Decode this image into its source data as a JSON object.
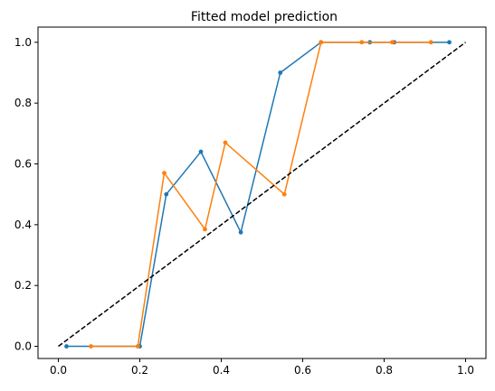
{
  "chart_data": {
    "type": "line",
    "title": "Fitted model prediction",
    "xlabel": "",
    "ylabel": "",
    "xlim": [
      -0.05,
      1.05
    ],
    "ylim": [
      -0.04,
      1.05
    ],
    "xticks": [
      "0.0",
      "0.2",
      "0.4",
      "0.6",
      "0.8",
      "1.0"
    ],
    "yticks": [
      "0.0",
      "0.2",
      "0.4",
      "0.6",
      "0.8",
      "1.0"
    ],
    "grid": false,
    "series": [
      {
        "color": "#1f77b4",
        "marker": "circle",
        "x": [
          0.02,
          0.2,
          0.265,
          0.35,
          0.448,
          0.545,
          0.645,
          0.765,
          0.825,
          0.96
        ],
        "y": [
          0.0,
          0.0,
          0.5,
          0.64,
          0.375,
          0.9,
          1.0,
          1.0,
          1.0,
          1.0
        ]
      },
      {
        "color": "#ff7f0e",
        "marker": "circle",
        "x": [
          0.08,
          0.195,
          0.26,
          0.36,
          0.41,
          0.555,
          0.645,
          0.745,
          0.82,
          0.915
        ],
        "y": [
          0.0,
          0.0,
          0.57,
          0.385,
          0.67,
          0.5,
          1.0,
          1.0,
          1.0,
          1.0
        ]
      },
      {
        "color": "#000000",
        "style": "dashed",
        "x": [
          0.0,
          1.0
        ],
        "y": [
          0.0,
          1.0
        ]
      }
    ]
  }
}
